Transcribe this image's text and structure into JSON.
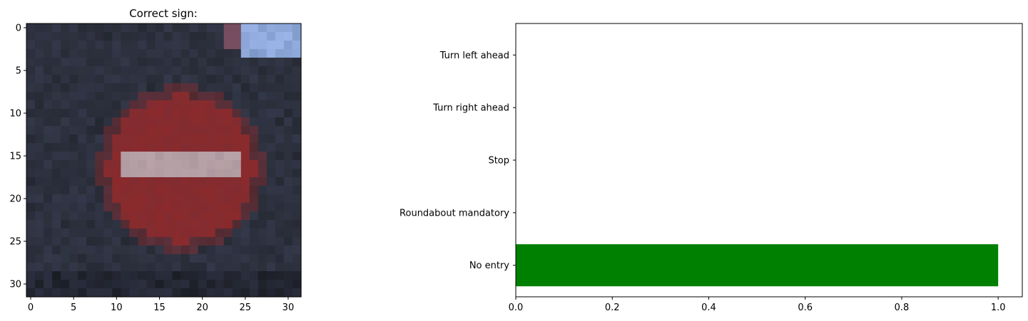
{
  "chart_data": [
    {
      "type": "image",
      "title": "Correct sign:",
      "x_ticks": [
        0,
        5,
        10,
        15,
        20,
        25,
        30
      ],
      "y_ticks": [
        0,
        5,
        10,
        15,
        20,
        25,
        30
      ],
      "xlim": [
        -0.5,
        31.5
      ],
      "ylim": [
        31.5,
        -0.5
      ],
      "image_size": [
        32,
        32
      ],
      "image_description_colors": {
        "background": "#2b2f3a",
        "sign_red": "#8a2a2c",
        "sign_bar": "#b8a3a8",
        "sky_blue": "#9ab4e8"
      }
    },
    {
      "type": "bar",
      "orientation": "horizontal",
      "categories": [
        "No entry",
        "Roundabout mandatory",
        "Stop",
        "Turn right ahead",
        "Turn left ahead"
      ],
      "values": [
        1.0,
        0.0,
        0.0,
        0.0,
        0.0
      ],
      "xlim": [
        0,
        1.05
      ],
      "x_ticks": [
        0.0,
        0.2,
        0.4,
        0.6,
        0.8,
        1.0
      ],
      "x_tick_labels": [
        "0.0",
        "0.2",
        "0.4",
        "0.6",
        "0.8",
        "1.0"
      ],
      "bar_color": "#008000",
      "grid": false
    }
  ]
}
